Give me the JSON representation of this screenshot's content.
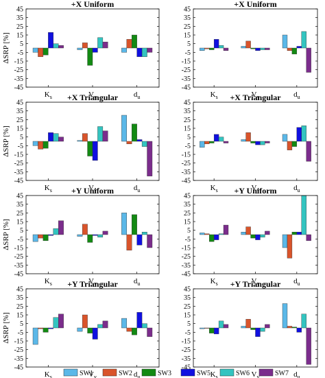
{
  "chart_data": [
    {
      "type": "bar",
      "title": "+X Uniform",
      "ylabel": "ΔSRP [%]",
      "ylim": [
        -45,
        45
      ],
      "yticks": [
        45,
        35,
        25,
        15,
        5,
        -5,
        -15,
        -25,
        -35,
        -45
      ],
      "categories": [
        {
          "base": "K",
          "sub": "s"
        },
        {
          "base": "V",
          "sub": "y"
        },
        {
          "base": "d",
          "sub": "u"
        }
      ],
      "series": [
        {
          "name": "SW1",
          "values": [
            -5,
            -2,
            -5
          ]
        },
        {
          "name": "SW2",
          "values": [
            -10,
            6,
            10
          ]
        },
        {
          "name": "SW3",
          "values": [
            -8,
            -20,
            15
          ]
        },
        {
          "name": "SW5",
          "values": [
            18,
            -5,
            -10
          ]
        },
        {
          "name": "SW6",
          "values": [
            5,
            12,
            -10
          ]
        },
        {
          "name": "SW7",
          "values": [
            3,
            7,
            -5
          ]
        }
      ]
    },
    {
      "type": "bar",
      "title": "+X Uniform",
      "ylabel": "",
      "ylim": [
        -45,
        45
      ],
      "yticks": [
        45,
        35,
        25,
        15,
        5,
        -5,
        -15,
        -25,
        -35,
        -45
      ],
      "categories": [
        {
          "base": "K",
          "sub": "s"
        },
        {
          "base": "V",
          "sub": "y"
        },
        {
          "base": "d",
          "sub": "u"
        }
      ],
      "series": [
        {
          "name": "SW1",
          "values": [
            -3,
            2,
            15
          ]
        },
        {
          "name": "SW2",
          "values": [
            -1,
            8,
            -3
          ]
        },
        {
          "name": "SW3",
          "values": [
            -2,
            -1,
            -7
          ]
        },
        {
          "name": "SW5",
          "values": [
            10,
            -3,
            2
          ]
        },
        {
          "name": "SW6",
          "values": [
            3,
            -2,
            19
          ]
        },
        {
          "name": "SW7",
          "values": [
            -3,
            -2,
            -28
          ]
        }
      ]
    },
    {
      "type": "bar",
      "title": "+X Triangular",
      "ylabel": "ΔSRP [%]",
      "ylim": [
        -45,
        45
      ],
      "yticks": [
        45,
        35,
        25,
        15,
        5,
        -5,
        -15,
        -25,
        -35,
        -45
      ],
      "categories": [
        {
          "base": "K",
          "sub": "s"
        },
        {
          "base": "V",
          "sub": "y"
        },
        {
          "base": "d",
          "sub": "u"
        }
      ],
      "series": [
        {
          "name": "SW1",
          "values": [
            -5,
            1,
            30
          ]
        },
        {
          "name": "SW2",
          "values": [
            -9,
            9,
            -3
          ]
        },
        {
          "name": "SW3",
          "values": [
            -8,
            -17,
            20
          ]
        },
        {
          "name": "SW5",
          "values": [
            10,
            -22,
            2
          ]
        },
        {
          "name": "SW6",
          "values": [
            9,
            17,
            -6
          ]
        },
        {
          "name": "SW7",
          "values": [
            5,
            12,
            -40
          ]
        }
      ]
    },
    {
      "type": "bar",
      "title": "+X Triangular",
      "ylabel": "",
      "ylim": [
        -45,
        45
      ],
      "yticks": [
        45,
        35,
        25,
        15,
        5,
        -5,
        -15,
        -25,
        -35,
        -45
      ],
      "categories": [
        {
          "base": "K",
          "sub": "s"
        },
        {
          "base": "V",
          "sub": "y"
        },
        {
          "base": "d",
          "sub": "u"
        }
      ],
      "series": [
        {
          "name": "SW1",
          "values": [
            -7,
            2,
            8
          ]
        },
        {
          "name": "SW2",
          "values": [
            -3,
            10,
            -10
          ]
        },
        {
          "name": "SW3",
          "values": [
            -2,
            -2,
            -6
          ]
        },
        {
          "name": "SW5",
          "values": [
            8,
            -4,
            16
          ]
        },
        {
          "name": "SW6",
          "values": [
            5,
            -4,
            18
          ]
        },
        {
          "name": "SW7",
          "values": [
            -2,
            -2,
            -23
          ]
        }
      ]
    },
    {
      "type": "bar",
      "title": "+Y Uniform",
      "ylabel": "ΔSRP [%]",
      "ylim": [
        -45,
        45
      ],
      "yticks": [
        45,
        35,
        25,
        15,
        5,
        -5,
        -15,
        -25,
        -35,
        -45
      ],
      "categories": [
        {
          "base": "K",
          "sub": "s"
        },
        {
          "base": "V",
          "sub": "y"
        },
        {
          "base": "d",
          "sub": "u"
        }
      ],
      "series": [
        {
          "name": "SW1",
          "values": [
            -8,
            -2,
            25
          ]
        },
        {
          "name": "SW2",
          "values": [
            -4,
            12,
            -18
          ]
        },
        {
          "name": "SW3",
          "values": [
            -7,
            -9,
            23
          ]
        },
        {
          "name": "SW5",
          "values": [
            -1,
            -1,
            -12
          ]
        },
        {
          "name": "SW6",
          "values": [
            7,
            -3,
            3
          ]
        },
        {
          "name": "SW7",
          "values": [
            16,
            4,
            -15
          ]
        }
      ]
    },
    {
      "type": "bar",
      "title": "+Y Uniform",
      "ylabel": "",
      "ylim": [
        -45,
        45
      ],
      "yticks": [
        45,
        35,
        25,
        15,
        5,
        -5,
        -15,
        -25,
        -35,
        -45
      ],
      "categories": [
        {
          "base": "K",
          "sub": "s"
        },
        {
          "base": "V",
          "sub": "y"
        },
        {
          "base": "d",
          "sub": "u"
        }
      ],
      "series": [
        {
          "name": "SW1",
          "values": [
            2,
            3,
            -15
          ]
        },
        {
          "name": "SW2",
          "values": [
            1,
            9,
            -27
          ]
        },
        {
          "name": "SW3",
          "values": [
            -8,
            -4,
            3
          ]
        },
        {
          "name": "SW5",
          "values": [
            -6,
            -6,
            3
          ]
        },
        {
          "name": "SW6",
          "values": [
            1,
            -3,
            45
          ]
        },
        {
          "name": "SW7",
          "values": [
            11,
            4,
            -7
          ]
        }
      ]
    },
    {
      "type": "bar",
      "title": "+Y Triangular",
      "ylabel": "ΔSRP [%]",
      "ylim": [
        -45,
        45
      ],
      "yticks": [
        45,
        35,
        25,
        15,
        5,
        -5,
        -15,
        -25,
        -35,
        -45
      ],
      "categories": [
        {
          "base": "K",
          "sub": "s"
        },
        {
          "base": "V",
          "sub": "y"
        },
        {
          "base": "d",
          "sub": "u"
        }
      ],
      "series": [
        {
          "name": "SW1",
          "values": [
            -19,
            -4,
            11
          ]
        },
        {
          "name": "SW2",
          "values": [
            -1,
            15,
            -4
          ]
        },
        {
          "name": "SW3",
          "values": [
            -5,
            -6,
            -8
          ]
        },
        {
          "name": "SW5",
          "values": [
            -1,
            -13,
            18
          ]
        },
        {
          "name": "SW6",
          "values": [
            12,
            4,
            5
          ]
        },
        {
          "name": "SW7",
          "values": [
            16,
            8,
            -10
          ]
        }
      ]
    },
    {
      "type": "bar",
      "title": "+Y Triangular",
      "ylabel": "",
      "ylim": [
        -45,
        45
      ],
      "yticks": [
        45,
        35,
        25,
        15,
        5,
        -5,
        -15,
        -25,
        -35,
        -45
      ],
      "categories": [
        {
          "base": "K",
          "sub": "s"
        },
        {
          "base": "V",
          "sub": "y"
        },
        {
          "base": "d",
          "sub": "u"
        }
      ],
      "series": [
        {
          "name": "SW1",
          "values": [
            -1,
            2,
            28
          ]
        },
        {
          "name": "SW2",
          "values": [
            0,
            10,
            2
          ]
        },
        {
          "name": "SW3",
          "values": [
            -6,
            -2,
            1
          ]
        },
        {
          "name": "SW5",
          "values": [
            -7,
            -10,
            -5
          ]
        },
        {
          "name": "SW6",
          "values": [
            8,
            -4,
            16
          ]
        },
        {
          "name": "SW7",
          "values": [
            4,
            4,
            -42
          ]
        }
      ]
    }
  ],
  "legend": {
    "placement": "bottom",
    "items": [
      {
        "name": "SW1",
        "color": "#5bb8e8"
      },
      {
        "name": "SW2",
        "color": "#d9542b"
      },
      {
        "name": "SW3",
        "color": "#138a13"
      },
      {
        "name": "SW5",
        "color": "#1010e0"
      },
      {
        "name": "SW6",
        "color": "#33c4c0"
      },
      {
        "name": "SW7",
        "color": "#7b2d8c"
      }
    ]
  }
}
